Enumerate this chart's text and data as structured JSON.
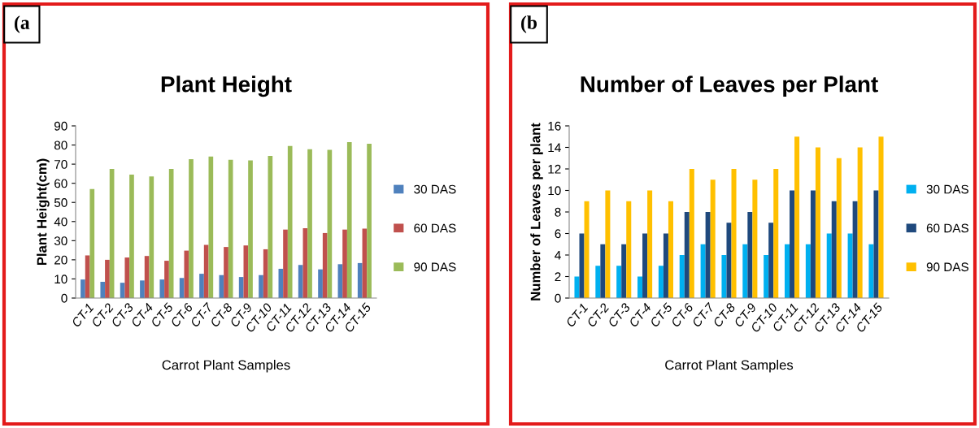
{
  "chart_data": [
    {
      "type": "bar",
      "title": "Plant Height",
      "xlabel": "Carrot Plant Samples",
      "ylabel": "Plant Height(cm)",
      "annotations": [
        "(a"
      ],
      "categories": [
        "CT-1",
        "CT-2",
        "CT-3",
        "CT-4",
        "CT-5",
        "CT-6",
        "CT-7",
        "CT-8",
        "CT-9",
        "CT-10",
        "CT-11",
        "CT-12",
        "CT-13",
        "CT-14",
        "CT-15"
      ],
      "series": [
        {
          "name": "30 DAS",
          "color": "#4f81bd",
          "values": [
            9.7,
            8.5,
            8,
            9.2,
            9.7,
            10.5,
            12.7,
            12,
            11,
            12,
            15.3,
            17.3,
            15,
            17.7,
            18.3
          ]
        },
        {
          "name": "60 DAS",
          "color": "#c0504d",
          "values": [
            22.3,
            20,
            21.2,
            22,
            19.5,
            24.8,
            27.8,
            26.7,
            27.5,
            25.5,
            35.8,
            36.5,
            34,
            35.8,
            36.3
          ]
        },
        {
          "name": "90 DAS",
          "color": "#9bbb59",
          "values": [
            57,
            67.5,
            64.5,
            63.6,
            67.5,
            72.6,
            74,
            72.3,
            72,
            74.3,
            79.5,
            77.8,
            77.5,
            81.5,
            80.7
          ]
        }
      ],
      "ylim": [
        0,
        90
      ],
      "yticks": [
        0,
        10,
        20,
        30,
        40,
        50,
        60,
        70,
        80,
        90
      ],
      "grid": false,
      "legend": "right"
    },
    {
      "type": "bar",
      "title": "Number of Leaves per Plant",
      "xlabel": "Carrot Plant Samples",
      "ylabel": "Number of Leaves per plant",
      "annotations": [
        "(b"
      ],
      "categories": [
        "CT-1",
        "CT-2",
        "CT-3",
        "CT-4",
        "CT-5",
        "CT-6",
        "CT-7",
        "CT-8",
        "CT-9",
        "CT-10",
        "CT-11",
        "CT-12",
        "CT-13",
        "CT-14",
        "CT-15"
      ],
      "series": [
        {
          "name": "30 DAS",
          "color": "#00b0f0",
          "values": [
            2,
            3,
            3,
            2,
            3,
            4,
            5,
            4,
            5,
            4,
            5,
            5,
            6,
            6,
            5
          ]
        },
        {
          "name": "60 DAS",
          "color": "#1f497d",
          "values": [
            6,
            5,
            5,
            6,
            6,
            8,
            8,
            7,
            8,
            7,
            10,
            10,
            9,
            9,
            10
          ]
        },
        {
          "name": "90 DAS",
          "color": "#ffc000",
          "values": [
            9,
            10,
            9,
            10,
            9,
            12,
            11,
            12,
            11,
            12,
            15,
            14,
            13,
            14,
            15
          ]
        }
      ],
      "ylim": [
        0,
        16
      ],
      "yticks": [
        0,
        2,
        4,
        6,
        8,
        10,
        12,
        14,
        16
      ],
      "grid": false,
      "legend": "right"
    }
  ]
}
